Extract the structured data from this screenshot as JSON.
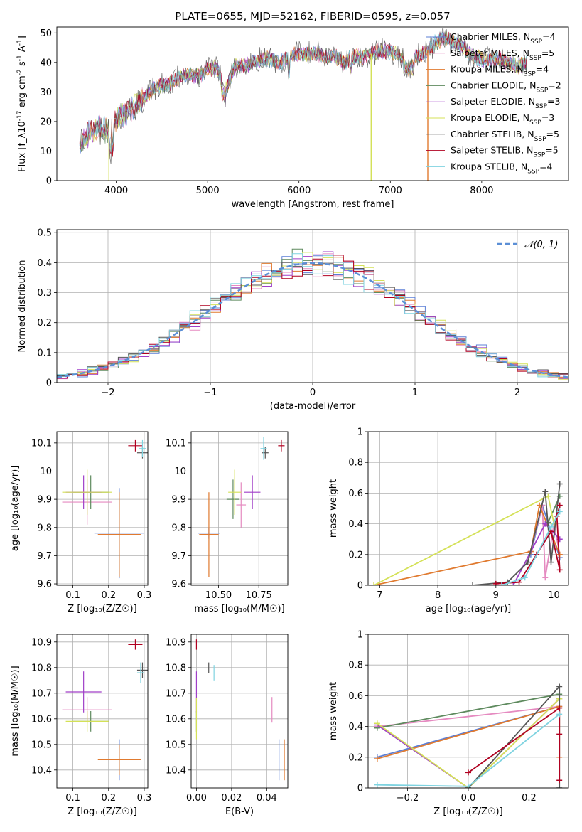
{
  "figure": {
    "title": "PLATE=0655, MJD=52162, FIBERID=0595, z=0.057"
  },
  "series": [
    {
      "key": "chab_miles",
      "label": "Chabrier MILES, N_{SSP}=4",
      "color": "#5b7fd6"
    },
    {
      "key": "salp_miles",
      "label": "Salpeter MILES, N_{SSP}=5",
      "color": "#e58ac0"
    },
    {
      "key": "krou_miles",
      "label": "Kroupa MILES, N_{SSP}=4",
      "color": "#e07a2f"
    },
    {
      "key": "chab_elodie",
      "label": "Chabrier ELODIE, N_{SSP}=2",
      "color": "#5e8a5e"
    },
    {
      "key": "salp_elodie",
      "label": "Salpeter ELODIE, N_{SSP}=3",
      "color": "#a03fc8"
    },
    {
      "key": "krou_elodie",
      "label": "Kroupa ELODIE, N_{SSP}=3",
      "color": "#d4e157"
    },
    {
      "key": "chab_stelib",
      "label": "Chabrier STELIB, N_{SSP}=5",
      "color": "#555555"
    },
    {
      "key": "salp_stelib",
      "label": "Salpeter STELIB, N_{SSP}=5",
      "color": "#b00020"
    },
    {
      "key": "krou_stelib",
      "label": "Kroupa STELIB, N_{SSP}=4",
      "color": "#7fd3e0"
    }
  ],
  "chart_data": [
    {
      "id": "spectrum",
      "type": "line",
      "xlabel": "wavelength [Angstrom, rest frame]",
      "ylabel": "Flux [f_λ10^{-17} erg cm^{-2} s^{-1} A^{-1}]",
      "xlim": [
        3350,
        8950
      ],
      "ylim": [
        0,
        52
      ],
      "xticks": [
        4000,
        5000,
        6000,
        7000,
        8000
      ],
      "yticks": [
        0,
        10,
        20,
        30,
        40,
        50
      ],
      "grid": false,
      "legend": "right",
      "spectrum_x": [
        3600,
        3700,
        3800,
        3900,
        4000,
        4100,
        4200,
        4300,
        4400,
        4500,
        4600,
        4700,
        4800,
        4900,
        5000,
        5100,
        5200,
        5300,
        5400,
        5500,
        5600,
        5700,
        5800,
        5900,
        6000,
        6100,
        6200,
        6300,
        6400,
        6500,
        6600,
        6700,
        6800,
        6900,
        7000,
        7100,
        7200,
        7300,
        7400,
        7500,
        7600,
        7700,
        7800,
        7900,
        8000,
        8100,
        8200,
        8300,
        8400,
        8500
      ],
      "spectrum_y": [
        12,
        16,
        18,
        17,
        21,
        23,
        25,
        28,
        31,
        32,
        33,
        35,
        36,
        35,
        38,
        38,
        31,
        39,
        39,
        40,
        41,
        41,
        40,
        42,
        43,
        43,
        43,
        42,
        42,
        40,
        42,
        42,
        43,
        44,
        44,
        42,
        41,
        42,
        44,
        47,
        48,
        47,
        45,
        42,
        41,
        41,
        41,
        40,
        39,
        40
      ],
      "dropouts": [
        {
          "key": "krou_elodie",
          "x": 3920
        },
        {
          "key": "krou_elodie",
          "x": 6790
        },
        {
          "key": "krou_miles",
          "x": 7410
        }
      ]
    },
    {
      "id": "residual_hist",
      "type": "line",
      "xlabel": "(data-model)/error",
      "ylabel": "Normed distribution",
      "xlim": [
        -2.5,
        2.5
      ],
      "ylim": [
        0,
        0.51
      ],
      "xticks": [
        -2,
        -1,
        0,
        1,
        2
      ],
      "yticks": [
        0.0,
        0.1,
        0.2,
        0.3,
        0.4,
        0.5
      ],
      "grid": true,
      "legend": "top-right",
      "legend_label": "𝒩(0, 1)",
      "bin_width": 0.1,
      "series_offsets": [
        0,
        1,
        2,
        3,
        4,
        5,
        6,
        7,
        8
      ]
    },
    {
      "id": "age_vs_Z",
      "type": "scatter",
      "xlabel": "Z [log₁₀(Z/Z☉)]",
      "ylabel": "age  [log₁₀(age/yr)]",
      "xlim": [
        0.055,
        0.31
      ],
      "ylim": [
        9.595,
        10.14
      ],
      "xticks": [
        0.1,
        0.2,
        0.3
      ],
      "yticks": [
        9.6,
        9.7,
        9.8,
        9.9,
        10.0,
        10.1
      ],
      "grid": true,
      "points": [
        {
          "key": "chab_miles",
          "x": 0.23,
          "y": 9.78,
          "xe": 0.07,
          "ye": 0.16
        },
        {
          "key": "salp_miles",
          "x": 0.14,
          "y": 9.89,
          "xe": 0.07,
          "ye": 0.08
        },
        {
          "key": "krou_miles",
          "x": 0.23,
          "y": 9.775,
          "xe": 0.06,
          "ye": 0.15
        },
        {
          "key": "chab_elodie",
          "x": 0.15,
          "y": 9.925,
          "xe": 0.05,
          "ye": 0.06
        },
        {
          "key": "salp_elodie",
          "x": 0.13,
          "y": 9.925,
          "xe": 0.05,
          "ye": 0.06
        },
        {
          "key": "krou_elodie",
          "x": 0.14,
          "y": 9.925,
          "xe": 0.07,
          "ye": 0.08
        },
        {
          "key": "chab_stelib",
          "x": 0.295,
          "y": 10.065,
          "xe": 0.015,
          "ye": 0.02
        },
        {
          "key": "salp_stelib",
          "x": 0.275,
          "y": 10.09,
          "xe": 0.02,
          "ye": 0.02
        },
        {
          "key": "krou_stelib",
          "x": 0.295,
          "y": 10.08,
          "xe": 0.01,
          "ye": 0.03
        }
      ]
    },
    {
      "id": "age_vs_mass",
      "type": "scatter",
      "xlabel": "mass [log₁₀(M/M☉)]",
      "ylabel": "",
      "xlim": [
        10.33,
        10.93
      ],
      "ylim": [
        9.595,
        10.14
      ],
      "xticks": [
        10.5,
        10.75
      ],
      "xticklabels": [
        "10.50",
        "10.75"
      ],
      "yticks": [
        9.6,
        9.7,
        9.8,
        9.9,
        10.0,
        10.1
      ],
      "grid": true,
      "points": [
        {
          "key": "chab_miles",
          "x": 10.44,
          "y": 9.78,
          "xe": 0.07,
          "ye": 0.02
        },
        {
          "key": "salp_miles",
          "x": 10.64,
          "y": 9.88,
          "xe": 0.03,
          "ye": 0.08
        },
        {
          "key": "krou_miles",
          "x": 10.44,
          "y": 9.775,
          "xe": 0.06,
          "ye": 0.15
        },
        {
          "key": "chab_elodie",
          "x": 10.59,
          "y": 9.9,
          "xe": 0.04,
          "ye": 0.07
        },
        {
          "key": "salp_elodie",
          "x": 10.71,
          "y": 9.925,
          "xe": 0.05,
          "ye": 0.06
        },
        {
          "key": "krou_elodie",
          "x": 10.6,
          "y": 9.925,
          "xe": 0.04,
          "ye": 0.08
        },
        {
          "key": "chab_stelib",
          "x": 10.79,
          "y": 10.065,
          "xe": 0.02,
          "ye": 0.02
        },
        {
          "key": "salp_stelib",
          "x": 10.89,
          "y": 10.09,
          "xe": 0.02,
          "ye": 0.02
        },
        {
          "key": "krou_stelib",
          "x": 10.78,
          "y": 10.08,
          "xe": 0.02,
          "ye": 0.04
        }
      ]
    },
    {
      "id": "weight_vs_age",
      "type": "line",
      "xlabel": "age  [log₁₀(age/yr)]",
      "ylabel": "mass weight",
      "xlim": [
        6.8,
        10.25
      ],
      "ylim": [
        0,
        1.0
      ],
      "xticks": [
        7,
        8,
        9,
        10
      ],
      "yticks": [
        0.0,
        0.2,
        0.4,
        0.6,
        0.8,
        1.0
      ],
      "grid": true,
      "lines": [
        {
          "key": "chab_miles",
          "x": [
            9.6,
            9.8,
            10.1
          ],
          "y": [
            0.2,
            0.52,
            0.18
          ]
        },
        {
          "key": "salp_miles",
          "x": [
            9.6,
            9.8,
            9.85,
            10.0,
            10.1
          ],
          "y": [
            0.22,
            0.52,
            0.05,
            0.4,
            0.2
          ]
        },
        {
          "key": "krou_miles",
          "x": [
            6.9,
            9.6,
            9.75,
            10.1
          ],
          "y": [
            0.0,
            0.22,
            0.52,
            0.2
          ]
        },
        {
          "key": "chab_elodie",
          "x": [
            9.9,
            10.1
          ],
          "y": [
            0.41,
            0.58
          ]
        },
        {
          "key": "salp_elodie",
          "x": [
            9.3,
            9.85,
            10.1
          ],
          "y": [
            0.0,
            0.4,
            0.3
          ]
        },
        {
          "key": "krou_elodie",
          "x": [
            6.9,
            9.9,
            10.0
          ],
          "y": [
            0.0,
            0.58,
            0.4
          ]
        },
        {
          "key": "chab_stelib",
          "x": [
            8.6,
            9.2,
            9.55,
            9.85,
            9.95,
            10.1
          ],
          "y": [
            0.0,
            0.02,
            0.15,
            0.61,
            0.15,
            0.66
          ]
        },
        {
          "key": "salp_stelib",
          "x": [
            9.0,
            9.4,
            9.7,
            9.95,
            10.1,
            10.05,
            10.1
          ],
          "y": [
            0.01,
            0.02,
            0.2,
            0.35,
            0.1,
            0.45,
            0.52
          ]
        },
        {
          "key": "krou_stelib",
          "x": [
            9.1,
            9.5,
            9.95,
            10.1
          ],
          "y": [
            0.0,
            0.05,
            0.38,
            0.48
          ]
        }
      ]
    },
    {
      "id": "mass_vs_Z",
      "type": "scatter",
      "xlabel": "Z [log₁₀(Z/Z☉)]",
      "ylabel": "mass [log₁₀(M/M☉)]",
      "xlim": [
        0.055,
        0.31
      ],
      "ylim": [
        10.33,
        10.93
      ],
      "xticks": [
        0.1,
        0.2,
        0.3
      ],
      "yticks": [
        10.4,
        10.5,
        10.6,
        10.7,
        10.8,
        10.9
      ],
      "grid": true,
      "points": [
        {
          "key": "chab_miles",
          "x": 0.23,
          "y": 10.44,
          "xe": 0.005,
          "ye": 0.08
        },
        {
          "key": "salp_miles",
          "x": 0.14,
          "y": 10.635,
          "xe": 0.07,
          "ye": 0.05
        },
        {
          "key": "krou_miles",
          "x": 0.23,
          "y": 10.44,
          "xe": 0.06,
          "ye": 0.06
        },
        {
          "key": "chab_elodie",
          "x": 0.15,
          "y": 10.59,
          "xe": 0.05,
          "ye": 0.04
        },
        {
          "key": "salp_elodie",
          "x": 0.13,
          "y": 10.705,
          "xe": 0.05,
          "ye": 0.08
        },
        {
          "key": "krou_elodie",
          "x": 0.14,
          "y": 10.59,
          "xe": 0.06,
          "ye": 0.04
        },
        {
          "key": "chab_stelib",
          "x": 0.295,
          "y": 10.79,
          "xe": 0.015,
          "ye": 0.03
        },
        {
          "key": "salp_stelib",
          "x": 0.275,
          "y": 10.89,
          "xe": 0.02,
          "ye": 0.02
        },
        {
          "key": "krou_stelib",
          "x": 0.29,
          "y": 10.78,
          "xe": 0.01,
          "ye": 0.04
        }
      ]
    },
    {
      "id": "mass_vs_ebv",
      "type": "scatter",
      "xlabel": "E(B-V)",
      "ylabel": "",
      "xlim": [
        -0.003,
        0.052
      ],
      "ylim": [
        10.33,
        10.93
      ],
      "xticks": [
        0.0,
        0.02,
        0.04
      ],
      "xticklabels": [
        "0.00",
        "0.02",
        "0.04"
      ],
      "yticks": [
        10.4,
        10.5,
        10.6,
        10.7,
        10.8,
        10.9
      ],
      "grid": true,
      "points": [
        {
          "key": "chab_miles",
          "x": 0.047,
          "y": 10.44,
          "xe": 0.0,
          "ye": 0.08
        },
        {
          "key": "salp_miles",
          "x": 0.043,
          "y": 10.635,
          "xe": 0.0,
          "ye": 0.05
        },
        {
          "key": "krou_miles",
          "x": 0.05,
          "y": 10.44,
          "xe": 0.0,
          "ye": 0.08
        },
        {
          "key": "chab_elodie",
          "x": 0.0,
          "y": 10.59,
          "xe": 0.0,
          "ye": 0.04
        },
        {
          "key": "salp_elodie",
          "x": 0.0,
          "y": 10.705,
          "xe": 0.0,
          "ye": 0.08
        },
        {
          "key": "krou_elodie",
          "x": 0.0,
          "y": 10.6,
          "xe": 0.0,
          "ye": 0.08
        },
        {
          "key": "chab_stelib",
          "x": 0.007,
          "y": 10.8,
          "xe": 0.0,
          "ye": 0.02
        },
        {
          "key": "salp_stelib",
          "x": 0.0,
          "y": 10.89,
          "xe": 0.0,
          "ye": 0.02
        },
        {
          "key": "krou_stelib",
          "x": 0.01,
          "y": 10.78,
          "xe": 0.0,
          "ye": 0.03
        }
      ]
    },
    {
      "id": "weight_vs_Z",
      "type": "line",
      "xlabel": "Z [log₁₀(Z/Z☉)]",
      "ylabel": "mass weight",
      "xlim": [
        -0.33,
        0.33
      ],
      "ylim": [
        0,
        1.0
      ],
      "xticks": [
        -0.2,
        0.0,
        0.2
      ],
      "xticklabels": [
        "−0.2",
        "0.0",
        "0.2"
      ],
      "yticks": [
        0.0,
        0.2,
        0.4,
        0.6,
        0.8,
        1.0
      ],
      "grid": true,
      "lines": [
        {
          "key": "chab_miles",
          "x": [
            -0.3,
            0.3
          ],
          "y": [
            0.2,
            0.53
          ]
        },
        {
          "key": "salp_miles",
          "x": [
            -0.3,
            0.3
          ],
          "y": [
            0.4,
            0.53
          ]
        },
        {
          "key": "krou_miles",
          "x": [
            -0.3,
            0.3,
            0.3
          ],
          "y": [
            0.19,
            0.53,
            0.2
          ]
        },
        {
          "key": "chab_elodie",
          "x": [
            -0.3,
            0.3
          ],
          "y": [
            0.39,
            0.61
          ]
        },
        {
          "key": "salp_elodie",
          "x": [
            -0.3,
            0.0,
            0.3
          ],
          "y": [
            0.41,
            0.0,
            0.58
          ]
        },
        {
          "key": "krou_elodie",
          "x": [
            -0.3,
            0.0,
            0.3
          ],
          "y": [
            0.42,
            0.0,
            0.58
          ]
        },
        {
          "key": "chab_stelib",
          "x": [
            0.0,
            0.3,
            0.3
          ],
          "y": [
            0.0,
            0.66,
            0.0
          ]
        },
        {
          "key": "salp_stelib",
          "x": [
            0.0,
            0.3,
            0.3,
            0.3
          ],
          "y": [
            0.1,
            0.52,
            0.35,
            0.05
          ]
        },
        {
          "key": "krou_stelib",
          "x": [
            -0.3,
            0.0,
            0.3
          ],
          "y": [
            0.02,
            0.01,
            0.48
          ]
        }
      ]
    }
  ]
}
